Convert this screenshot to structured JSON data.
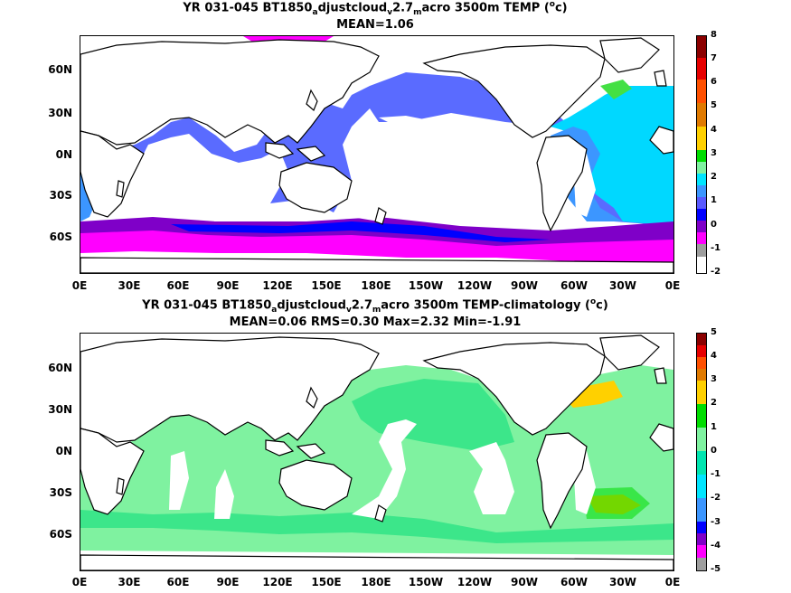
{
  "panels": [
    {
      "title_pre": "YR 031-045 BT1850",
      "title_sub1": "a",
      "title_mid1": "djustcloud",
      "title_sub2": "v",
      "title_mid2": "2.7",
      "title_sub3": "m",
      "title_post_a": "acro 3500m TEMP (",
      "title_sup": "o",
      "title_post_b": "c)",
      "stats": "MEAN=1.06",
      "colorbar_ticks": [
        "8",
        "7",
        "6",
        "5",
        "4",
        "3",
        "2",
        "1",
        "0",
        "-1",
        "-2"
      ],
      "colorbar_colors": [
        "#8b0000",
        "#e60000",
        "#ff5000",
        "#e07a00",
        "#ffd000",
        "#00dd00",
        "#7ff2a0",
        "#00e5ff",
        "#3c96ff",
        "#5a5aff",
        "#0000ff",
        "#7f00c8",
        "#ff00ff",
        "#9e9e9e"
      ]
    },
    {
      "title_pre": "YR 031-045 BT1850",
      "title_sub1": "a",
      "title_mid1": "djustcloud",
      "title_sub2": "v",
      "title_mid2": "2.7",
      "title_sub3": "m",
      "title_post_a": "acro 3500m TEMP-climatology (",
      "title_sup": "o",
      "title_post_b": "c)",
      "stats": "MEAN=0.06   RMS=0.30   Max=2.32   Min=-1.91",
      "colorbar_ticks": [
        "5",
        "4",
        "3",
        "2",
        "1",
        "0",
        "-1",
        "-2",
        "-3",
        "-4",
        "-5"
      ],
      "colorbar_colors": [
        "#8b0000",
        "#e60000",
        "#ff5000",
        "#e07a00",
        "#ffd000",
        "#00dd00",
        "#7ff2a0",
        "#00e5b0",
        "#00e5ff",
        "#3c96ff",
        "#0000ff",
        "#7f00c8",
        "#ff00ff",
        "#9e9e9e"
      ]
    }
  ],
  "axes": {
    "x_ticks": [
      "0E",
      "30E",
      "60E",
      "90E",
      "120E",
      "150E",
      "180E",
      "150W",
      "120W",
      "90W",
      "60W",
      "30W",
      "0E"
    ],
    "y_ticks": [
      "60N",
      "30N",
      "0N",
      "30S",
      "60S"
    ]
  },
  "chart_data": [
    {
      "type": "heatmap",
      "title": "YR 031-045 BT1850_adjustcloud_v2.7_macro 3500m TEMP (oc)",
      "stats": {
        "MEAN": 1.06
      },
      "colorbar_range": [
        -2,
        8
      ],
      "x_ticks": [
        "0E",
        "30E",
        "60E",
        "90E",
        "120E",
        "150E",
        "180E",
        "150W",
        "120W",
        "90W",
        "60W",
        "30W",
        "0E"
      ],
      "y_ticks": [
        "60N",
        "30N",
        "0N",
        "30S",
        "60S"
      ]
    },
    {
      "type": "heatmap",
      "title": "YR 031-045 BT1850_adjustcloud_v2.7_macro 3500m TEMP-climatology (oc)",
      "stats": {
        "MEAN": 0.06,
        "RMS": 0.3,
        "Max": 2.32,
        "Min": -1.91
      },
      "colorbar_range": [
        -5,
        5
      ],
      "x_ticks": [
        "0E",
        "30E",
        "60E",
        "90E",
        "120E",
        "150E",
        "180E",
        "150W",
        "120W",
        "90W",
        "60W",
        "30W",
        "0E"
      ],
      "y_ticks": [
        "60N",
        "30N",
        "0N",
        "30S",
        "60S"
      ]
    }
  ]
}
